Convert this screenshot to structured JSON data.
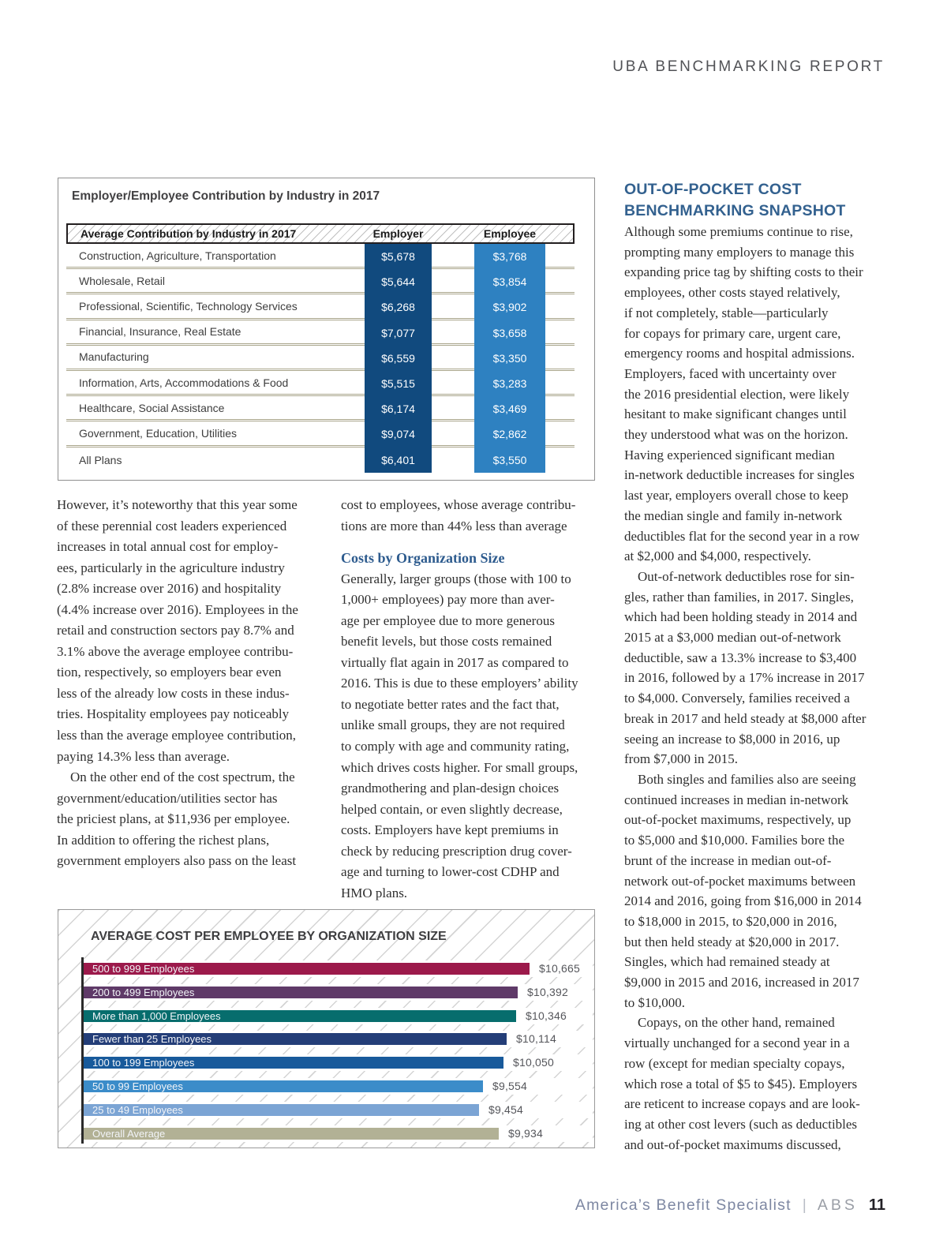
{
  "header": {
    "title": "UBA BENCHMARKING REPORT"
  },
  "industry_table": {
    "title": "Employer/Employee Contribution by Industry in 2017",
    "header": {
      "industry": "Average Contribution by Industry in 2017",
      "employer": "Employer",
      "employee": "Employee"
    },
    "rows": [
      {
        "industry": "Construction, Agriculture, Transportation",
        "employer": "$5,678",
        "employee": "$3,768"
      },
      {
        "industry": "Wholesale, Retail",
        "employer": "$5,644",
        "employee": "$3,854"
      },
      {
        "industry": "Professional, Scientific, Technology Services",
        "employer": "$6,268",
        "employee": "$3,902"
      },
      {
        "industry": "Financial, Insurance, Real Estate",
        "employer": "$7,077",
        "employee": "$3,658"
      },
      {
        "industry": "Manufacturing",
        "employer": "$6,559",
        "employee": "$3,350"
      },
      {
        "industry": "Information, Arts, Accommodations & Food",
        "employer": "$5,515",
        "employee": "$3,283"
      },
      {
        "industry": "Healthcare, Social Assistance",
        "employer": "$6,174",
        "employee": "$3,469"
      },
      {
        "industry": "Government, Education, Utilities",
        "employer": "$9,074",
        "employee": "$2,862"
      },
      {
        "industry": "All Plans",
        "employer": "$6,401",
        "employee": "$3,550"
      }
    ],
    "colors": {
      "employer_bg": "#114a7e",
      "employee_bg": "#2e81c1"
    }
  },
  "article": {
    "col1_paragraphs": [
      "However, it’s noteworthy that this year some\nof these perennial cost leaders experienced\nincreases in total annual cost for employ-\nees, particularly in the agriculture industry\n(2.8% increase over 2016) and hospitality\n(4.4% increase over 2016). Employees in the\nretail and construction sectors pay 8.7% and\n3.1% above the average employee contribu-\ntion, respectively, so employers bear even\nless of the already low costs in these indus-\ntries. Hospitality employees pay noticeably\nless than the average employee contribution,\npaying 14.3% less than average.",
      "    On the other end of the cost spectrum, the\ngovernment/education/utilities sector has\nthe priciest plans, at $11,936 per employee.\nIn addition to offering the richest plans,\ngovernment employers also pass on the least"
    ],
    "col2_intro": "cost to employees, whose average contribu-\ntions are more than 44% less than average",
    "col2_heading": "Costs by Organization Size",
    "col2_body": "Generally, larger groups (those with 100 to\n1,000+ employees) pay more than aver-\nage per employee due to more generous\nbenefit levels, but those costs remained\nvirtually flat again in 2017 as compared to\n2016. This is due to these employers’ ability\nto negotiate better rates and the fact that,\nunlike small groups, they are not required\nto comply with age and community rating,\nwhich drives costs higher. For small groups,\ngrandmothering and plan-design choices\nhelped contain, or even slightly decrease,\ncosts. Employers have kept premiums in\ncheck by reducing prescription drug cover-\nage and turning to lower-cost CDHP and\nHMO plans.",
    "col3_heading": "OUT-OF-POCKET COST\nBENCHMARKING SNAPSHOT",
    "col3_paragraphs": [
      "Although some premiums continue to rise,\nprompting many employers to manage this\nexpanding price tag by shifting costs to their\nemployees, other costs stayed relatively,\nif not completely, stable—particularly\nfor copays for primary care, urgent care,\nemergency rooms and hospital admissions.\nEmployers, faced with uncertainty over\nthe 2016 presidential election, were likely\nhesitant to make significant changes until\nthey understood what was on the horizon.\nHaving experienced significant median\nin-network deductible increases for singles\nlast year, employers overall chose to keep\nthe median single and family in-network\ndeductibles flat for the second year in a row\nat $2,000 and $4,000, respectively.",
      "    Out-of-network deductibles rose for sin-\ngles, rather than families, in 2017. Singles,\nwhich had been holding steady in 2014 and\n2015 at a $3,000 median out-of-network\ndeductible, saw a 13.3% increase to $3,400\nin 2016, followed by a 17% increase in 2017\nto $4,000. Conversely, families received a\nbreak in 2017 and held steady at $8,000 after\nseeing an increase to $8,000 in 2016, up\nfrom $7,000 in 2015.",
      "    Both singles and families also are seeing\ncontinued increases in median in-network\nout-of-pocket maximums, respectively, up\nto $5,000 and $10,000. Families bore the\nbrunt of the increase in median out-of-\nnetwork out-of-pocket maximums between\n2014 and 2016, going from $16,000 in 2014\nto $18,000 in 2015, to $20,000 in 2016,\nbut then held steady at $20,000 in 2017.\nSingles, which had remained steady at\n$9,000 in 2015 and 2016, increased in 2017\nto $10,000.",
      "    Copays, on the other hand, remained\nvirtually unchanged for a second year in a\nrow (except for median specialty copays,\nwhich rose a total of $5 to $45). Employers\nare reticent to increase copays and are look-\ning at other cost levers (such as deductibles\nand out-of-pocket maximums discussed,"
    ]
  },
  "chart_data": {
    "type": "bar",
    "orientation": "horizontal",
    "title": "AVERAGE COST PER EMPLOYEE BY ORGANIZATION SIZE",
    "categories": [
      "500 to 999 Employees",
      "200 to 499 Employees",
      "More than 1,000 Employees",
      "Fewer than 25 Employees",
      "100 to 199 Employees",
      "50 to 99 Employees",
      "25 to 49 Employees",
      "Overall Average"
    ],
    "values": [
      10665,
      10392,
      10346,
      10114,
      10050,
      9554,
      9454,
      9934
    ],
    "value_labels": [
      "$10,665",
      "$10,392",
      "$10,346",
      "$10,114",
      "$10,050",
      "$9,554",
      "$9,454",
      "$9,934"
    ],
    "bar_colors": [
      "#9c1a4b",
      "#5f3a68",
      "#076d6d",
      "#243e78",
      "#185a9b",
      "#3b8cc9",
      "#7ba4d4",
      "#b2b195"
    ],
    "xlim": [
      0,
      10665
    ],
    "xlabel": "",
    "ylabel": "",
    "legend": false,
    "grid": false
  },
  "footer": {
    "brand": "America’s Benefit Specialist",
    "divider": "|",
    "abbr": "ABS",
    "page_number": "11"
  }
}
